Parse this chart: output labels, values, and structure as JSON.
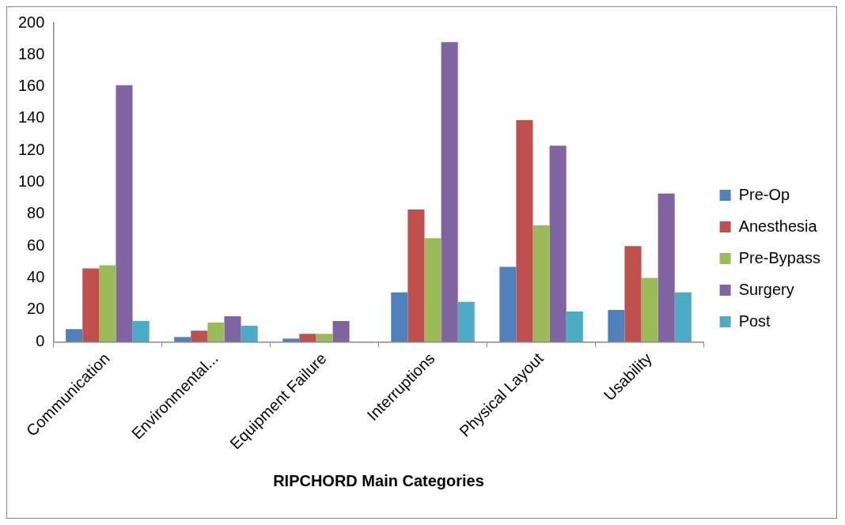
{
  "chart_data": {
    "type": "bar",
    "xlabel": "RIPCHORD Main Categories",
    "categories": [
      "Communication",
      "Environmental...",
      "Equipment Failure",
      "Interruptions",
      "Physical Layout",
      "Usability"
    ],
    "series": [
      {
        "name": "Pre-Op",
        "color": "#4f81bd",
        "values": [
          8,
          3,
          2,
          31,
          47,
          20
        ]
      },
      {
        "name": "Anesthesia",
        "color": "#c0504d",
        "values": [
          46,
          7,
          5,
          83,
          139,
          60
        ]
      },
      {
        "name": "Pre-Bypass",
        "color": "#9bbb59",
        "values": [
          48,
          12,
          5,
          65,
          73,
          40
        ]
      },
      {
        "name": "Surgery",
        "color": "#8064a2",
        "values": [
          161,
          16,
          13,
          188,
          123,
          93
        ]
      },
      {
        "name": "Post",
        "color": "#4bacc6",
        "values": [
          13,
          10,
          0,
          25,
          19,
          31
        ]
      }
    ],
    "ylim": [
      0,
      200
    ],
    "yticks": [
      0,
      20,
      40,
      60,
      80,
      100,
      120,
      140,
      160,
      180,
      200
    ],
    "grid": false,
    "legend": "right"
  }
}
